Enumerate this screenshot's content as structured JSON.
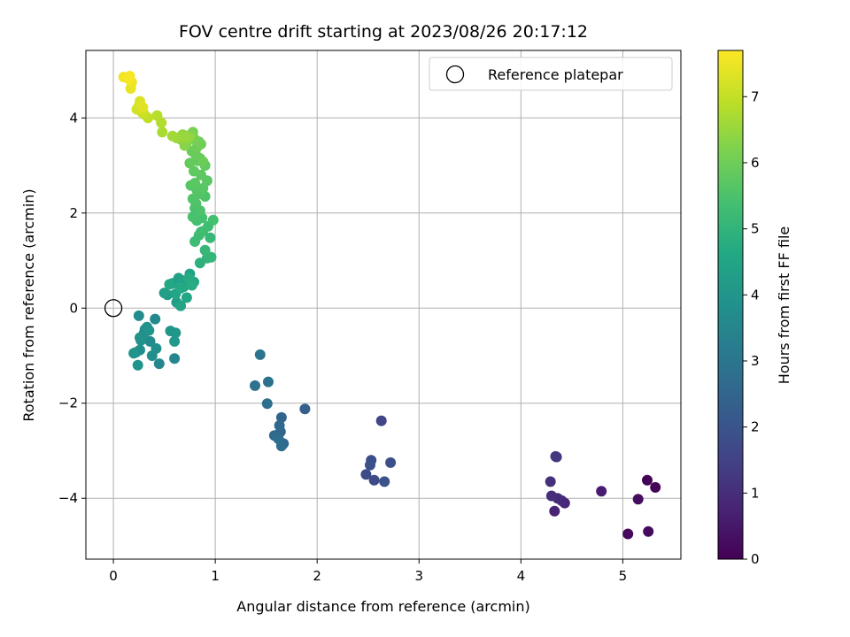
{
  "chart_data": {
    "type": "scatter",
    "title": "FOV centre drift starting at 2023/08/26 20:17:12",
    "xlabel": "Angular distance from reference (arcmin)",
    "ylabel": "Rotation from reference (arcmin)",
    "xlim": [
      -0.27,
      5.57
    ],
    "ylim": [
      -5.28,
      5.42
    ],
    "xticks": [
      0,
      1,
      2,
      3,
      4,
      5
    ],
    "yticks": [
      -4,
      -2,
      0,
      2,
      4
    ],
    "grid": true,
    "legend": {
      "placement": "top-right",
      "entries": [
        "Reference platepar"
      ]
    },
    "reference_point": {
      "x": 0,
      "y": 0,
      "label": "Reference platepar"
    },
    "colorbar": {
      "label": "Hours from first FF file",
      "min": 0,
      "max": 7.7,
      "ticks": [
        0,
        1,
        2,
        3,
        4,
        5,
        6,
        7
      ],
      "colormap": "viridis"
    },
    "series": [
      {
        "x": [
          5.24,
          5.32,
          5.05,
          5.25,
          5.15,
          4.79,
          4.33,
          4.43,
          4.4,
          4.36,
          4.3,
          4.29,
          4.35,
          4.34,
          2.63,
          2.56,
          2.48,
          2.53,
          2.72,
          2.52,
          2.66,
          1.88,
          1.65,
          1.64,
          1.67,
          1.63,
          1.58,
          1.65,
          1.62,
          1.51,
          1.52,
          1.39,
          1.44,
          0.6,
          0.45,
          0.41,
          0.36,
          0.22,
          0.3,
          0.25,
          0.31,
          0.26,
          0.29,
          0.38,
          0.42,
          0.27,
          0.24,
          0.33,
          0.26,
          0.35,
          0.2,
          0.56,
          0.61,
          0.6,
          0.66,
          0.62,
          0.53,
          0.5,
          0.58,
          0.64,
          0.69,
          0.75,
          0.7,
          0.61,
          0.66,
          0.72,
          0.79,
          0.55,
          0.66,
          0.74,
          0.77,
          0.85,
          0.92,
          0.96,
          0.9,
          0.95,
          0.86,
          0.8,
          0.84,
          0.93,
          0.88,
          0.82,
          0.98,
          0.87,
          0.83,
          0.78,
          0.8,
          0.85,
          0.81,
          0.9,
          0.78,
          0.82,
          0.84,
          0.76,
          0.88,
          0.92,
          0.8,
          0.86,
          0.79,
          0.9,
          0.83,
          0.75,
          0.85,
          0.81,
          0.77,
          0.88,
          0.82,
          0.86,
          0.84,
          0.8,
          0.78,
          0.73,
          0.72,
          0.7,
          0.66,
          0.75,
          0.68,
          0.71,
          0.62,
          0.58,
          0.48,
          0.47,
          0.43,
          0.34,
          0.3,
          0.28,
          0.25,
          0.23,
          0.26,
          0.29,
          0.17,
          0.18,
          0.1,
          0.16,
          0.15
        ],
        "y": [
          -3.62,
          -3.77,
          -4.75,
          -4.7,
          -4.02,
          -3.85,
          -4.27,
          -4.1,
          -4.05,
          -4.0,
          -3.95,
          -3.65,
          -3.13,
          -3.12,
          -2.37,
          -3.62,
          -3.5,
          -3.2,
          -3.25,
          -3.3,
          -3.65,
          -2.12,
          -2.3,
          -2.6,
          -2.85,
          -2.47,
          -2.68,
          -2.9,
          -2.75,
          -2.01,
          -1.55,
          -1.63,
          -0.98,
          -1.06,
          -1.17,
          -0.23,
          -0.7,
          -0.93,
          -0.53,
          -0.16,
          -0.45,
          -0.88,
          -0.6,
          -1.0,
          -0.85,
          -0.68,
          -1.2,
          -0.4,
          -0.62,
          -0.47,
          -0.95,
          -0.48,
          -0.52,
          -0.7,
          0.05,
          0.12,
          0.28,
          0.32,
          0.52,
          0.63,
          0.45,
          0.72,
          0.58,
          0.3,
          0.05,
          0.22,
          0.55,
          0.5,
          0.42,
          0.62,
          0.48,
          0.95,
          1.05,
          1.07,
          1.22,
          1.48,
          1.6,
          1.4,
          1.53,
          1.72,
          1.62,
          1.84,
          1.85,
          1.9,
          2.0,
          1.92,
          2.1,
          2.05,
          2.2,
          2.35,
          2.3,
          2.48,
          2.4,
          2.58,
          2.52,
          2.68,
          2.63,
          2.8,
          2.88,
          3.0,
          3.1,
          3.05,
          3.15,
          3.22,
          3.3,
          3.08,
          3.38,
          3.45,
          3.5,
          3.55,
          3.7,
          3.62,
          3.48,
          3.42,
          3.55,
          3.6,
          3.65,
          3.58,
          3.58,
          3.62,
          3.7,
          3.9,
          4.05,
          4.0,
          4.08,
          4.12,
          4.25,
          4.18,
          4.35,
          4.22,
          4.62,
          4.75,
          4.86,
          4.88,
          4.82
        ],
        "t": [
          0.05,
          0.1,
          0.15,
          0.2,
          0.25,
          0.6,
          0.75,
          0.85,
          0.9,
          0.95,
          1.0,
          1.05,
          1.2,
          1.25,
          1.6,
          1.7,
          1.75,
          1.8,
          1.85,
          1.9,
          1.95,
          2.3,
          2.45,
          2.5,
          2.55,
          2.6,
          2.65,
          2.7,
          2.75,
          2.8,
          2.85,
          2.9,
          2.95,
          3.5,
          3.55,
          3.6,
          3.62,
          3.65,
          3.68,
          3.7,
          3.72,
          3.75,
          3.78,
          3.8,
          3.82,
          3.85,
          3.88,
          3.9,
          3.92,
          3.95,
          3.98,
          4.0,
          4.05,
          4.1,
          4.2,
          4.25,
          4.3,
          4.32,
          4.35,
          4.38,
          4.4,
          4.42,
          4.45,
          4.48,
          4.5,
          4.55,
          4.6,
          4.62,
          4.65,
          4.7,
          4.75,
          4.9,
          5.0,
          5.05,
          5.1,
          5.15,
          5.2,
          5.25,
          5.28,
          5.3,
          5.32,
          5.35,
          5.38,
          5.4,
          5.42,
          5.45,
          5.48,
          5.5,
          5.52,
          5.55,
          5.58,
          5.6,
          5.62,
          5.65,
          5.68,
          5.7,
          5.72,
          5.75,
          5.78,
          5.8,
          5.82,
          5.85,
          5.88,
          5.9,
          5.92,
          5.95,
          5.98,
          6.0,
          6.05,
          6.1,
          6.15,
          6.2,
          6.25,
          6.3,
          6.35,
          6.4,
          6.45,
          6.5,
          6.55,
          6.6,
          6.7,
          6.8,
          6.85,
          6.95,
          7.0,
          7.1,
          7.15,
          7.2,
          7.3,
          7.35,
          7.45,
          7.5,
          7.55,
          7.6,
          7.62
        ]
      }
    ]
  }
}
